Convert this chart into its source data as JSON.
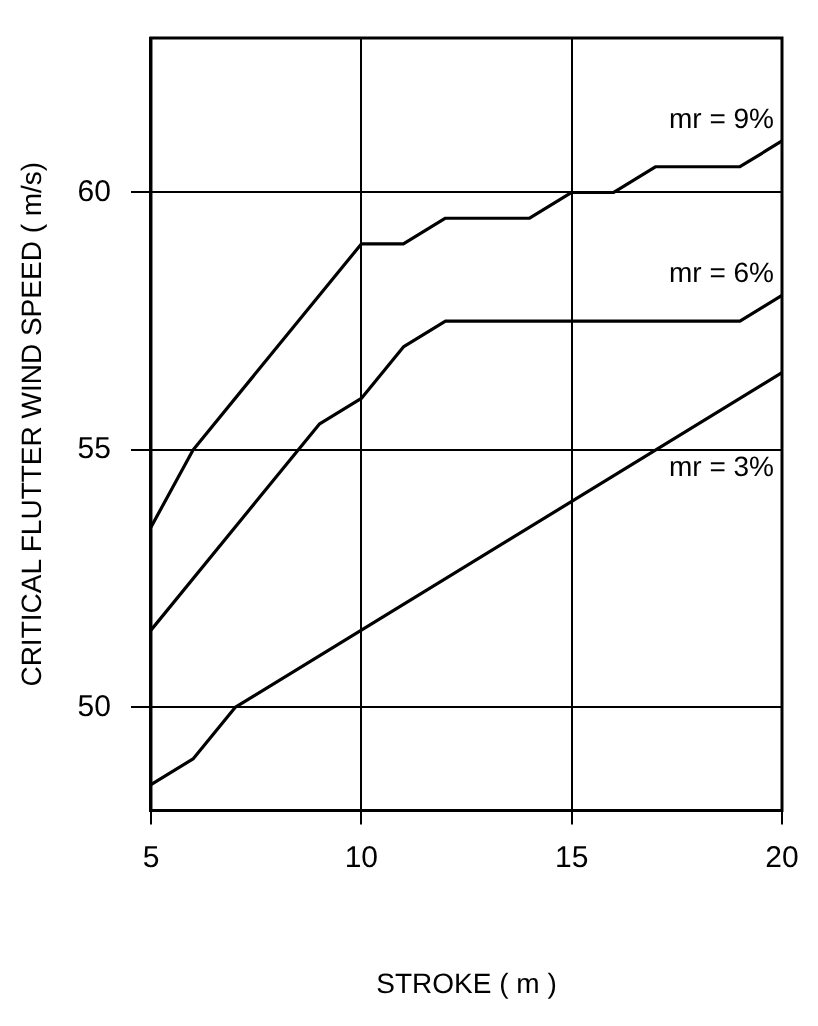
{
  "chart_data": {
    "type": "line",
    "xlabel": "STROKE ( m )",
    "ylabel": "CRITICAL FLUTTER WIND SPEED ( m/s)",
    "xlim": [
      5,
      20
    ],
    "xticks": [
      5,
      10,
      15,
      20
    ],
    "ylim": [
      48,
      63
    ],
    "yticks": [
      50,
      55,
      60
    ],
    "grid": true,
    "legend": false,
    "marker": "none",
    "line_style": "solid",
    "series": [
      {
        "name": "mr = 9%",
        "color": "#000000",
        "x": [
          5,
          6,
          10,
          11,
          12,
          14,
          15,
          16,
          17,
          19,
          20
        ],
        "values": [
          53.5,
          55,
          59,
          59,
          59.5,
          59.5,
          60,
          60,
          60.5,
          60.5,
          61
        ]
      },
      {
        "name": "mr = 6%",
        "color": "#000000",
        "x": [
          5,
          9,
          10,
          11,
          12,
          19,
          20
        ],
        "values": [
          51.5,
          55.5,
          56,
          57,
          57.5,
          57.5,
          58
        ]
      },
      {
        "name": "mr = 3%",
        "color": "#000000",
        "x": [
          5,
          6,
          7,
          20
        ],
        "values": [
          48.5,
          49,
          50,
          56.5
        ]
      }
    ]
  }
}
